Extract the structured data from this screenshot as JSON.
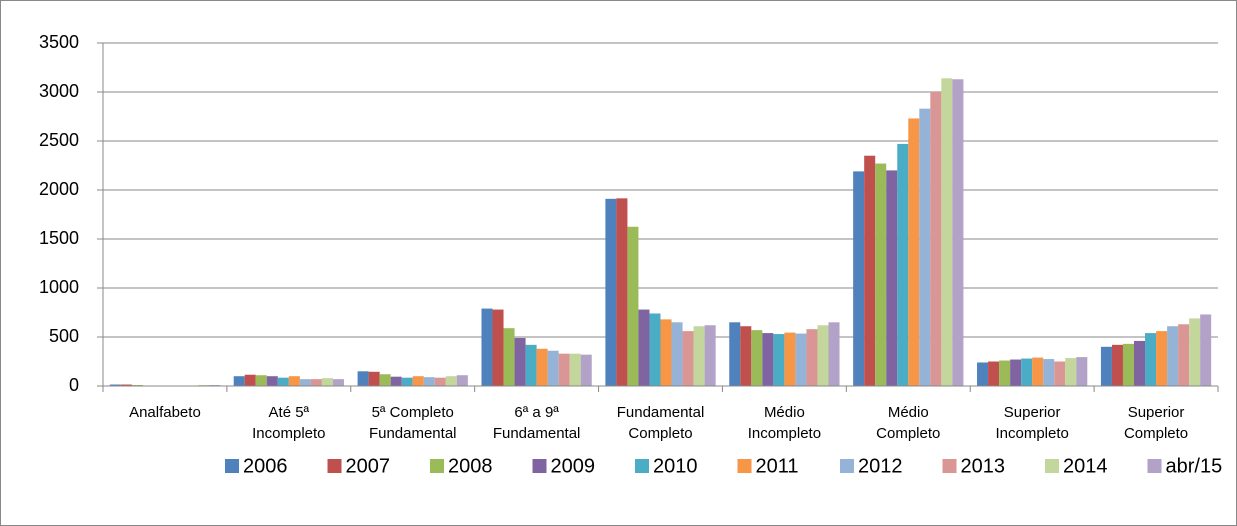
{
  "chart_data": {
    "type": "bar",
    "categories": [
      "Analfabeto",
      "Até 5ª\nIncompleto",
      "5ª Completo\nFundamental",
      "6ª a 9ª\nFundamental",
      "Fundamental\nCompleto",
      "Médio\nIncompleto",
      "Médio\nCompleto",
      "Superior\nIncompleto",
      "Superior\nCompleto"
    ],
    "series": [
      {
        "name": "2006",
        "color": "#4f81bd",
        "values": [
          15,
          100,
          150,
          790,
          1910,
          650,
          2190,
          240,
          400
        ]
      },
      {
        "name": "2007",
        "color": "#c0504d",
        "values": [
          15,
          115,
          145,
          780,
          1915,
          610,
          2350,
          250,
          420
        ]
      },
      {
        "name": "2008",
        "color": "#9bbb59",
        "values": [
          10,
          110,
          120,
          590,
          1625,
          570,
          2270,
          260,
          430
        ]
      },
      {
        "name": "2009",
        "color": "#8064a2",
        "values": [
          5,
          100,
          95,
          490,
          780,
          540,
          2200,
          270,
          460
        ]
      },
      {
        "name": "2010",
        "color": "#4bacc6",
        "values": [
          5,
          85,
          85,
          420,
          740,
          530,
          2470,
          280,
          540
        ]
      },
      {
        "name": "2011",
        "color": "#f79646",
        "values": [
          5,
          100,
          100,
          380,
          680,
          545,
          2730,
          290,
          560
        ]
      },
      {
        "name": "2012",
        "color": "#95b3d7",
        "values": [
          5,
          70,
          90,
          360,
          650,
          535,
          2830,
          275,
          610
        ]
      },
      {
        "name": "2013",
        "color": "#d99694",
        "values": [
          5,
          70,
          85,
          330,
          560,
          580,
          3000,
          250,
          630
        ]
      },
      {
        "name": "2014",
        "color": "#c3d69b",
        "values": [
          10,
          80,
          100,
          330,
          610,
          620,
          3140,
          285,
          690
        ]
      },
      {
        "name": "abr/15",
        "color": "#b3a2c7",
        "values": [
          10,
          70,
          110,
          320,
          620,
          650,
          3130,
          295,
          730
        ]
      }
    ],
    "ylim": [
      0,
      3500
    ],
    "yticks": [
      0,
      500,
      1000,
      1500,
      2000,
      2500,
      3000,
      3500
    ],
    "grid": true,
    "legend": "bottom"
  }
}
